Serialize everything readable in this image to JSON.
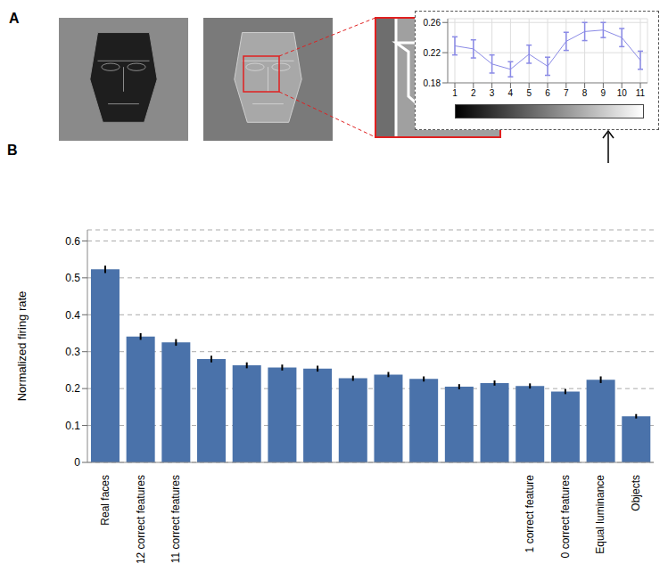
{
  "panel_labels": [
    "A",
    "B"
  ],
  "chart_data": [
    {
      "type": "bar",
      "ylabel": "Normalized firing rate",
      "categories": [
        "Real faces",
        "12 correct features",
        "11 correct features",
        null,
        null,
        null,
        null,
        null,
        null,
        null,
        null,
        null,
        "1 correct feature",
        "0 correct features",
        "Equal luminance",
        "Objects"
      ],
      "values": [
        0.523,
        0.341,
        0.325,
        0.28,
        0.263,
        0.257,
        0.254,
        0.228,
        0.238,
        0.226,
        0.205,
        0.215,
        0.207,
        0.192,
        0.224,
        0.125
      ],
      "errors": [
        0.01,
        0.009,
        0.009,
        0.009,
        0.008,
        0.008,
        0.008,
        0.007,
        0.007,
        0.007,
        0.007,
        0.007,
        0.007,
        0.007,
        0.009,
        0.006
      ],
      "color": "#4a72aa",
      "ylim": [
        0,
        0.63
      ],
      "yticks": [
        0,
        0.1,
        0.2,
        0.3,
        0.4,
        0.5,
        0.6
      ],
      "grid": true
    },
    {
      "type": "line",
      "categories": [
        1,
        2,
        3,
        4,
        5,
        6,
        7,
        8,
        9,
        10,
        11
      ],
      "values": [
        0.229,
        0.225,
        0.205,
        0.198,
        0.218,
        0.202,
        0.235,
        0.248,
        0.25,
        0.24,
        0.21
      ],
      "errors": [
        0.012,
        0.012,
        0.012,
        0.01,
        0.012,
        0.012,
        0.012,
        0.012,
        0.01,
        0.012,
        0.012
      ],
      "color": "#8a8ae6",
      "ylim": [
        0.18,
        0.265
      ],
      "yticks": [
        0.18,
        0.22,
        0.26
      ],
      "grid": true
    }
  ]
}
